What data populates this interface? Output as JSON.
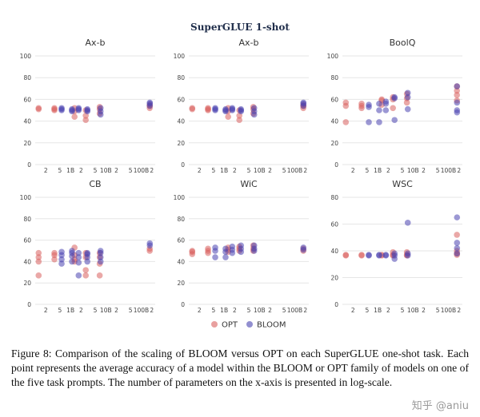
{
  "title": "SuperGLUE 1-shot",
  "colors": {
    "opt": "#d9605f",
    "bloom": "#4a44b0"
  },
  "x_ticks": [
    "2",
    "5",
    "1B",
    "2",
    "5",
    "10B",
    "2",
    "5",
    "100B",
    "2"
  ],
  "legend": [
    {
      "name": "OPT",
      "color": "#d9605f"
    },
    {
      "name": "BLOOM",
      "color": "#4a44b0"
    }
  ],
  "chart_data": [
    {
      "type": "scatter",
      "title": "Ax-b",
      "xscale": "log",
      "xlim": [
        0.1,
        250
      ],
      "ylim": [
        0,
        100
      ],
      "yticks": [
        0,
        20,
        40,
        60,
        80,
        100
      ],
      "series": [
        {
          "name": "OPT",
          "x": [
            0.125,
            0.125,
            0.35,
            0.35,
            0.35,
            1.3,
            1.3,
            1.3,
            2.7,
            2.7,
            2.7,
            6.7,
            6.7,
            6.7,
            175,
            175,
            175
          ],
          "y": [
            51,
            52,
            52,
            50,
            51,
            44,
            52,
            49,
            41,
            45,
            50,
            51,
            47,
            53,
            52,
            54,
            55
          ]
        },
        {
          "name": "BLOOM",
          "x": [
            0.56,
            0.56,
            0.56,
            1.1,
            1.1,
            1.1,
            1.7,
            1.7,
            1.7,
            3,
            3,
            3,
            7.1,
            7.1,
            7.1,
            176,
            176,
            176
          ],
          "y": [
            50,
            52,
            51,
            51,
            49,
            50,
            50,
            52,
            51,
            49,
            51,
            50,
            46,
            49,
            52,
            57,
            56,
            54
          ]
        }
      ]
    },
    {
      "type": "scatter",
      "title": "Ax-b",
      "xscale": "log",
      "xlim": [
        0.1,
        250
      ],
      "ylim": [
        0,
        100
      ],
      "yticks": [
        0,
        20,
        40,
        60,
        80,
        100
      ],
      "series": [
        {
          "name": "OPT",
          "x": [
            0.125,
            0.125,
            0.35,
            0.35,
            0.35,
            1.3,
            1.3,
            1.3,
            2.7,
            2.7,
            2.7,
            6.7,
            6.7,
            6.7,
            175,
            175,
            175
          ],
          "y": [
            51,
            52,
            52,
            50,
            51,
            44,
            52,
            49,
            41,
            45,
            50,
            51,
            47,
            53,
            52,
            54,
            55
          ]
        },
        {
          "name": "BLOOM",
          "x": [
            0.56,
            0.56,
            0.56,
            1.1,
            1.1,
            1.1,
            1.7,
            1.7,
            1.7,
            3,
            3,
            3,
            7.1,
            7.1,
            7.1,
            176,
            176,
            176
          ],
          "y": [
            50,
            52,
            51,
            51,
            49,
            50,
            50,
            52,
            51,
            49,
            51,
            50,
            46,
            49,
            52,
            57,
            56,
            54
          ]
        }
      ]
    },
    {
      "type": "scatter",
      "title": "BoolQ",
      "xscale": "log",
      "xlim": [
        0.1,
        250
      ],
      "ylim": [
        0,
        100
      ],
      "yticks": [
        0,
        20,
        40,
        60,
        80,
        100
      ],
      "series": [
        {
          "name": "OPT",
          "x": [
            0.125,
            0.125,
            0.125,
            0.35,
            0.35,
            0.35,
            1.3,
            1.3,
            1.3,
            2.7,
            2.7,
            2.7,
            6.7,
            6.7,
            6.7,
            175,
            175,
            175,
            175
          ],
          "y": [
            39,
            54,
            57,
            56,
            52,
            54,
            59,
            55,
            60,
            60,
            62,
            52,
            61,
            65,
            57,
            72,
            64,
            59,
            68
          ]
        },
        {
          "name": "BLOOM",
          "x": [
            0.56,
            0.56,
            0.56,
            1.1,
            1.1,
            1.1,
            1.7,
            1.7,
            1.7,
            3,
            3,
            3,
            7.1,
            7.1,
            7.1,
            176,
            176,
            176,
            176
          ],
          "y": [
            39,
            55,
            53,
            39,
            56,
            50,
            58,
            50,
            56,
            41,
            61,
            62,
            51,
            62,
            66,
            72,
            57,
            50,
            48
          ]
        }
      ]
    },
    {
      "type": "scatter",
      "title": "CB",
      "xscale": "log",
      "xlim": [
        0.1,
        250
      ],
      "ylim": [
        0,
        100
      ],
      "yticks": [
        0,
        20,
        40,
        60,
        80,
        100
      ],
      "series": [
        {
          "name": "OPT",
          "x": [
            0.125,
            0.125,
            0.125,
            0.125,
            0.35,
            0.35,
            0.35,
            1.3,
            1.3,
            1.3,
            1.3,
            2.7,
            2.7,
            2.7,
            2.7,
            6.7,
            6.7,
            6.7,
            6.7,
            175,
            175
          ],
          "y": [
            27,
            40,
            44,
            48,
            42,
            46,
            48,
            53,
            46,
            40,
            42,
            27,
            32,
            44,
            48,
            27,
            38,
            44,
            48,
            50,
            52
          ]
        },
        {
          "name": "BLOOM",
          "x": [
            0.56,
            0.56,
            0.56,
            0.56,
            1.1,
            1.1,
            1.1,
            1.1,
            1.7,
            1.7,
            1.7,
            1.7,
            3,
            3,
            3,
            3,
            7.1,
            7.1,
            7.1,
            7.1,
            176,
            176
          ],
          "y": [
            38,
            42,
            46,
            49,
            40,
            45,
            48,
            50,
            27,
            39,
            44,
            48,
            40,
            44,
            47,
            48,
            40,
            44,
            48,
            50,
            55,
            57
          ]
        }
      ]
    },
    {
      "type": "scatter",
      "title": "WiC",
      "xscale": "log",
      "xlim": [
        0.1,
        250
      ],
      "ylim": [
        0,
        100
      ],
      "yticks": [
        0,
        20,
        40,
        60,
        80,
        100
      ],
      "series": [
        {
          "name": "OPT",
          "x": [
            0.125,
            0.125,
            0.125,
            0.35,
            0.35,
            0.35,
            1.3,
            1.3,
            1.3,
            2.7,
            2.7,
            2.7,
            6.7,
            6.7,
            6.7,
            175,
            175
          ],
          "y": [
            47,
            49,
            50,
            48,
            50,
            52,
            49,
            51,
            53,
            50,
            52,
            54,
            50,
            52,
            55,
            50,
            52
          ]
        },
        {
          "name": "BLOOM",
          "x": [
            0.56,
            0.56,
            0.56,
            1.1,
            1.1,
            1.1,
            1.7,
            1.7,
            1.7,
            3,
            3,
            3,
            7.1,
            7.1,
            7.1,
            176,
            176
          ],
          "y": [
            44,
            50,
            53,
            44,
            49,
            52,
            48,
            51,
            54,
            49,
            52,
            55,
            50,
            52,
            55,
            51,
            53
          ]
        }
      ]
    },
    {
      "type": "scatter",
      "title": "WSC",
      "xscale": "log",
      "xlim": [
        0.1,
        250
      ],
      "ylim": [
        0,
        80
      ],
      "yticks": [
        0,
        20,
        40,
        60,
        80
      ],
      "series": [
        {
          "name": "OPT",
          "x": [
            0.125,
            0.125,
            0.35,
            0.35,
            1.3,
            1.3,
            2.7,
            2.7,
            2.7,
            6.7,
            6.7,
            6.7,
            175,
            175,
            175,
            175
          ],
          "y": [
            36.5,
            37,
            36.5,
            37,
            36.5,
            37,
            36.5,
            37,
            39,
            36.5,
            37,
            39,
            52,
            40,
            38,
            37
          ]
        },
        {
          "name": "BLOOM",
          "x": [
            0.56,
            0.56,
            1.1,
            1.1,
            1.7,
            1.7,
            3,
            3,
            3,
            7.1,
            7.1,
            7.1,
            176,
            176,
            176,
            176
          ],
          "y": [
            36.5,
            37,
            36.5,
            37,
            36.5,
            37,
            34,
            36.5,
            38,
            36.5,
            38,
            61,
            65,
            46,
            42,
            38
          ]
        }
      ]
    }
  ],
  "caption": "Figure 8: Comparison of the scaling of BLOOM versus OPT on each SuperGLUE one-shot task. Each point represents the average accuracy of a model within the BLOOM or OPT family of models on one of the five task prompts. The number of parameters on the x-axis is presented in log-scale.",
  "watermark": "知乎 @aniu"
}
